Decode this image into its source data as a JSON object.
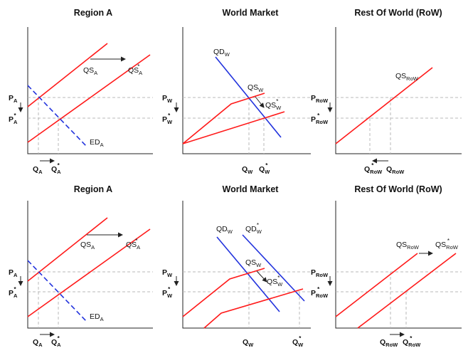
{
  "panels": {
    "top": {
      "region": {
        "title": "Region A",
        "p_high": {
          "main": "P",
          "sub": "A",
          "sup": ""
        },
        "p_low": {
          "main": "P",
          "sub": "A",
          "sup": "*"
        },
        "q_left": {
          "main": "Q",
          "sub": "A",
          "sup": ""
        },
        "q_right": {
          "main": "Q",
          "sub": "A",
          "sup": "*"
        },
        "supply_old": {
          "main": "QS",
          "sub": "A",
          "sup": ""
        },
        "supply_new": {
          "main": "QS",
          "sub": "A",
          "sup": "*"
        },
        "excess_demand": {
          "main": "ED",
          "sub": "A",
          "sup": ""
        }
      },
      "world": {
        "title": "World Market",
        "p_high": {
          "main": "P",
          "sub": "W",
          "sup": ""
        },
        "p_low": {
          "main": "P",
          "sub": "W",
          "sup": "*"
        },
        "q_left": {
          "main": "Q",
          "sub": "W",
          "sup": ""
        },
        "q_right": {
          "main": "Q",
          "sub": "W",
          "sup": "*"
        },
        "demand": {
          "main": "QD",
          "sub": "W",
          "sup": ""
        },
        "supply_old": {
          "main": "QS",
          "sub": "W",
          "sup": ""
        },
        "supply_new": {
          "main": "QS",
          "sub": "W",
          "sup": "*"
        }
      },
      "row": {
        "title": "Rest Of World (RoW)",
        "p_high": {
          "main": "P",
          "sub": "RoW",
          "sup": ""
        },
        "p_low": {
          "main": "P",
          "sub": "RoW",
          "sup": "*"
        },
        "q_left": {
          "main": "Q",
          "sub": "RoW",
          "sup": "*"
        },
        "q_right": {
          "main": "Q",
          "sub": "RoW",
          "sup": ""
        },
        "supply": {
          "main": "QS",
          "sub": "RoW",
          "sup": ""
        }
      }
    },
    "bottom": {
      "region": {
        "title": "Region A",
        "p_high": {
          "main": "P",
          "sub": "A",
          "sup": ""
        },
        "p_low": {
          "main": "P",
          "sub": "A",
          "sup": "*"
        },
        "q_left": {
          "main": "Q",
          "sub": "A",
          "sup": ""
        },
        "q_right": {
          "main": "Q",
          "sub": "A",
          "sup": "*"
        },
        "supply_old": {
          "main": "QS",
          "sub": "A",
          "sup": ""
        },
        "supply_new": {
          "main": "QS",
          "sub": "A",
          "sup": "*"
        },
        "excess_demand": {
          "main": "ED",
          "sub": "A",
          "sup": ""
        }
      },
      "world": {
        "title": "World Market",
        "p_high": {
          "main": "P",
          "sub": "W",
          "sup": ""
        },
        "p_low": {
          "main": "P",
          "sub": "W",
          "sup": "*"
        },
        "q_left": {
          "main": "Q",
          "sub": "W",
          "sup": ""
        },
        "q_right": {
          "main": "Q",
          "sub": "W",
          "sup": "*"
        },
        "demand_old": {
          "main": "QD",
          "sub": "W",
          "sup": ""
        },
        "demand_new": {
          "main": "QD",
          "sub": "W",
          "sup": "*"
        },
        "supply_old": {
          "main": "QS",
          "sub": "W",
          "sup": ""
        },
        "supply_new": {
          "main": "QS",
          "sub": "W",
          "sup": "*"
        }
      },
      "row": {
        "title": "Rest Of World (RoW)",
        "p_high": {
          "main": "P",
          "sub": "RoW",
          "sup": ""
        },
        "p_low": {
          "main": "P",
          "sub": "RoW",
          "sup": "*"
        },
        "q_left": {
          "main": "Q",
          "sub": "RoW",
          "sup": ""
        },
        "q_right": {
          "main": "Q",
          "sub": "RoW",
          "sup": "*"
        },
        "supply_old": {
          "main": "QS",
          "sub": "RoW",
          "sup": ""
        },
        "supply_new": {
          "main": "QS",
          "sub": "RoW",
          "sup": "*"
        }
      }
    }
  },
  "colors": {
    "supply": "#ff1a1a",
    "demand": "#2233dd",
    "guide": "#b8b8b8",
    "axis": "#222222"
  }
}
